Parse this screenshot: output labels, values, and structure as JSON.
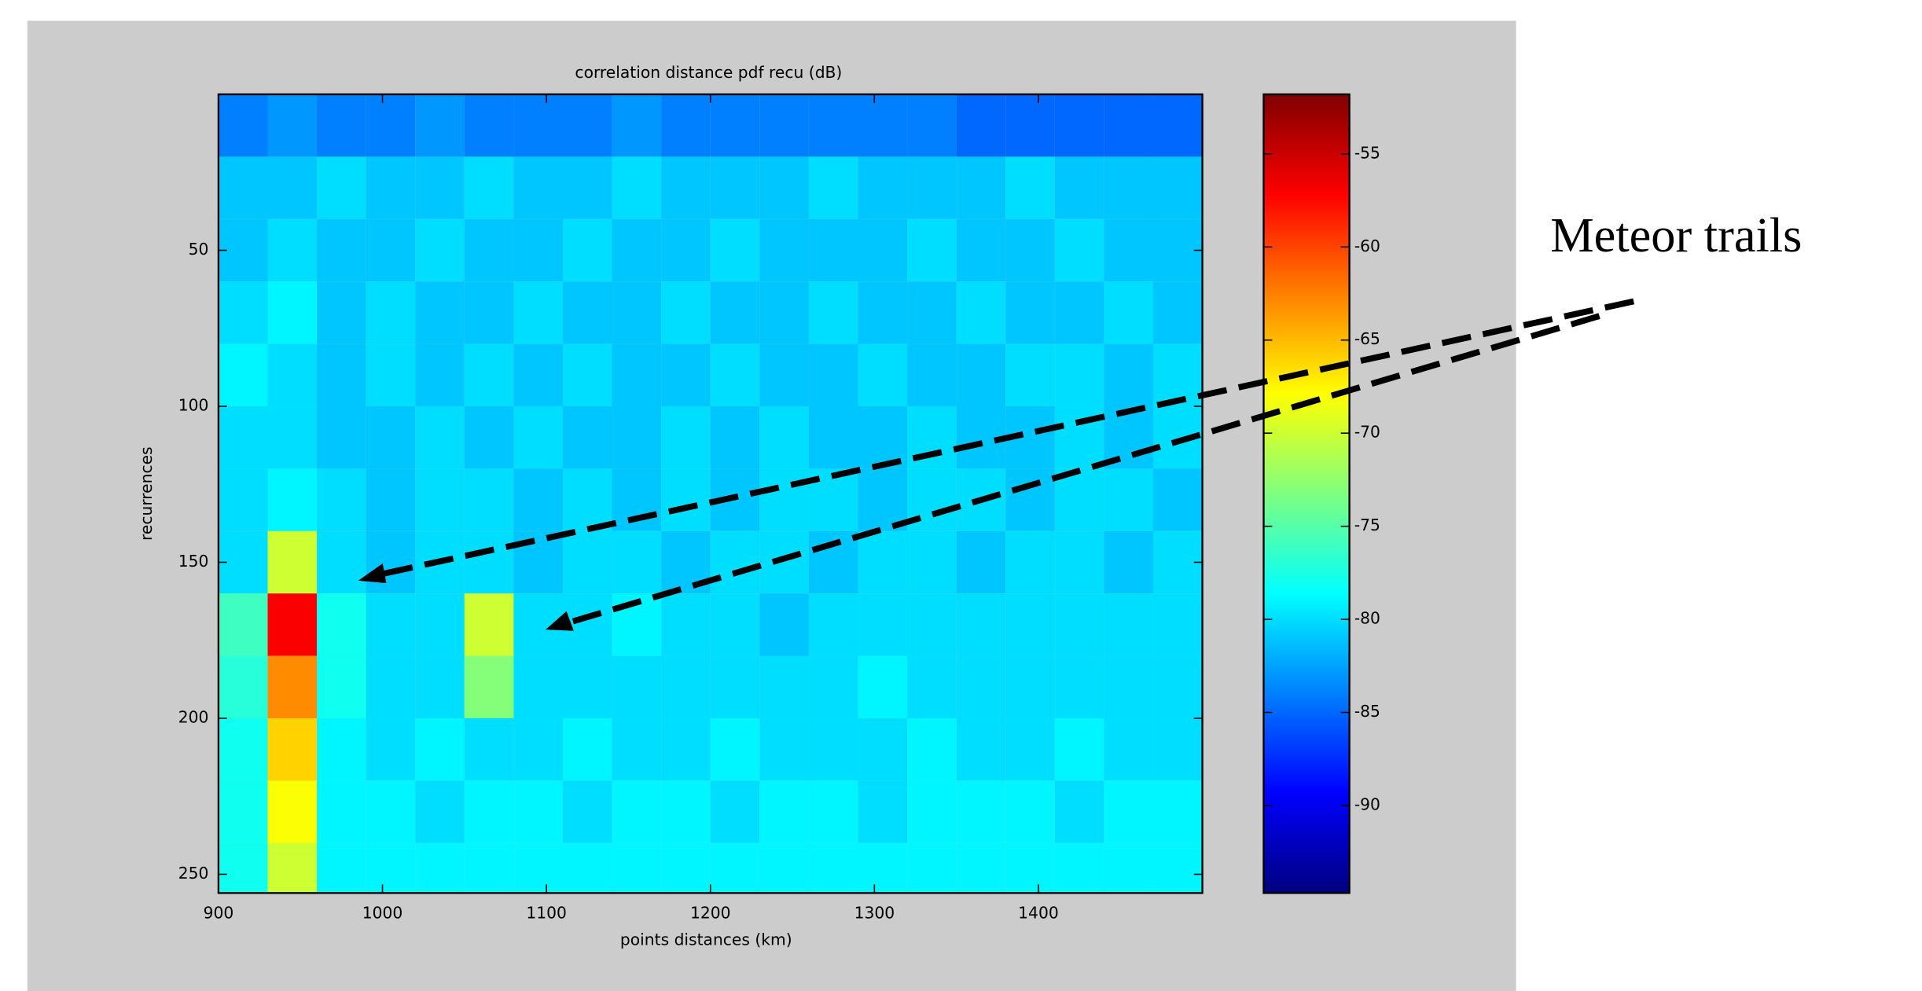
{
  "chart_data": {
    "type": "heatmap",
    "title": "correlation distance pdf recu (dB)",
    "x_label": "points distances (km)",
    "y_label": "recurrences",
    "annotation": "Meteor trails",
    "xlim": [
      900,
      1500
    ],
    "xticks": [
      900,
      1000,
      1100,
      1200,
      1300,
      1400
    ],
    "ylim": [
      0,
      256
    ],
    "yticks": [
      50,
      100,
      150,
      200,
      250
    ],
    "y_reversed": true,
    "xbins": [
      900,
      930,
      960,
      990,
      1020,
      1050,
      1080,
      1110,
      1140,
      1170,
      1200,
      1230,
      1260,
      1290,
      1320,
      1350,
      1380,
      1410,
      1440,
      1470,
      1500
    ],
    "ybins": [
      0,
      20,
      40,
      60,
      80,
      100,
      120,
      140,
      160,
      180,
      200,
      220,
      240,
      256
    ],
    "z": [
      [
        -84,
        -83,
        -84,
        -84,
        -83,
        -84,
        -84,
        -84,
        -83,
        -84,
        -84,
        -84,
        -84,
        -84,
        -84,
        -85,
        -85,
        -85,
        -85,
        -85
      ],
      [
        -81,
        -81,
        -80,
        -81,
        -81,
        -80,
        -81,
        -81,
        -80,
        -81,
        -81,
        -81,
        -80,
        -81,
        -81,
        -81,
        -80,
        -81,
        -81,
        -81
      ],
      [
        -81,
        -80,
        -81,
        -81,
        -80,
        -81,
        -81,
        -80,
        -81,
        -81,
        -80,
        -81,
        -81,
        -81,
        -80,
        -81,
        -81,
        -80,
        -81,
        -81
      ],
      [
        -80,
        -79,
        -81,
        -80,
        -81,
        -81,
        -80,
        -81,
        -81,
        -80,
        -81,
        -81,
        -80,
        -81,
        -81,
        -80,
        -81,
        -81,
        -80,
        -81
      ],
      [
        -79,
        -80,
        -81,
        -80,
        -81,
        -80,
        -81,
        -80,
        -81,
        -81,
        -80,
        -81,
        -81,
        -80,
        -81,
        -81,
        -80,
        -80,
        -81,
        -80
      ],
      [
        -80,
        -80,
        -81,
        -81,
        -80,
        -81,
        -80,
        -81,
        -81,
        -80,
        -81,
        -80,
        -81,
        -81,
        -80,
        -81,
        -81,
        -80,
        -81,
        -80
      ],
      [
        -80,
        -79,
        -80,
        -81,
        -80,
        -80,
        -81,
        -80,
        -81,
        -80,
        -81,
        -80,
        -80,
        -81,
        -80,
        -80,
        -81,
        -80,
        -80,
        -81
      ],
      [
        -80,
        -70,
        -80,
        -81,
        -80,
        -80,
        -81,
        -80,
        -80,
        -81,
        -80,
        -80,
        -81,
        -80,
        -80,
        -81,
        -80,
        -80,
        -81,
        -80
      ],
      [
        -76,
        -57,
        -78,
        -80,
        -80,
        -70,
        -80,
        -80,
        -79,
        -80,
        -80,
        -81,
        -80,
        -80,
        -80,
        -80,
        -80,
        -80,
        -80,
        -80
      ],
      [
        -77,
        -63,
        -78,
        -80,
        -80,
        -73,
        -80,
        -80,
        -80,
        -80,
        -80,
        -80,
        -80,
        -79,
        -80,
        -80,
        -80,
        -80,
        -80,
        -80
      ],
      [
        -78,
        -66,
        -79,
        -80,
        -79,
        -80,
        -80,
        -79,
        -80,
        -80,
        -79,
        -80,
        -80,
        -80,
        -79,
        -80,
        -80,
        -79,
        -80,
        -80
      ],
      [
        -78,
        -68,
        -79,
        -79,
        -80,
        -79,
        -79,
        -80,
        -79,
        -79,
        -80,
        -79,
        -79,
        -80,
        -79,
        -79,
        -79,
        -80,
        -79,
        -79
      ],
      [
        -78,
        -70,
        -79,
        -79,
        -79,
        -79,
        -79,
        -79,
        -79,
        -79,
        -79,
        -79,
        -79,
        -79,
        -79,
        -79,
        -79,
        -79,
        -79,
        -79
      ]
    ],
    "colormap": "jet",
    "clim": [
      -94.7,
      -51.8
    ],
    "cticks": [
      -90,
      -85,
      -80,
      -75,
      -70,
      -65,
      -60,
      -55
    ]
  }
}
